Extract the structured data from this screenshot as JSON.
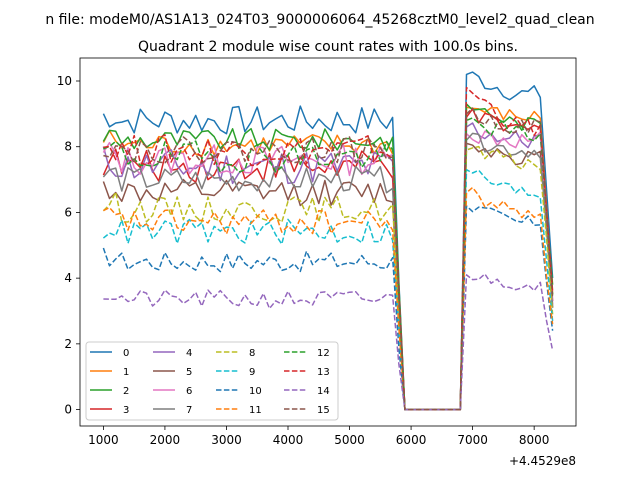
{
  "figure": {
    "suptitle": "n file: modeM0/AS1A13_024T03_9000006064_45268cztM0_level2_quad_clean",
    "title": "Quadrant 2 module wise count rates with 100.0s bins.",
    "x_offset_label": "+4.4529e8"
  },
  "chart_data": {
    "type": "line",
    "title": "Quadrant 2 module wise count rates with 100.0s bins.",
    "xlabel": "",
    "ylabel": "",
    "x_offset": "+4.4529e8",
    "xlim": [
      620,
      8680
    ],
    "ylim": [
      -0.5,
      10.7
    ],
    "xticks": [
      1000,
      2000,
      3000,
      4000,
      5000,
      6000,
      7000,
      8000
    ],
    "yticks": [
      0,
      2,
      4,
      6,
      8,
      10
    ],
    "grid": false,
    "legend": {
      "placement": "lower-left",
      "columns": 4
    },
    "x_range": {
      "start": 1000,
      "step": 100,
      "count": 74
    },
    "gap": {
      "drop_start": 5800,
      "drop_end": 5900,
      "zero_from": 5900,
      "zero_to": 6800,
      "rise_to": 6900
    },
    "series": [
      {
        "name": "0",
        "color": "#1f77b4",
        "dash": "solid",
        "level": 8.8,
        "noise": 0.28,
        "post": 9.6,
        "post_start": 10.2,
        "end": 4.0
      },
      {
        "name": "1",
        "color": "#ff7f0e",
        "dash": "solid",
        "level": 8.05,
        "noise": 0.22,
        "post": 8.9,
        "post_start": 9.2,
        "end": 3.5
      },
      {
        "name": "2",
        "color": "#2ca02c",
        "dash": "solid",
        "level": 8.2,
        "noise": 0.22,
        "post": 8.7,
        "post_start": 9.3,
        "end": 3.8
      },
      {
        "name": "3",
        "color": "#d62728",
        "dash": "solid",
        "level": 7.4,
        "noise": 0.3,
        "post": 8.5,
        "post_start": 8.9,
        "end": 3.3
      },
      {
        "name": "4",
        "color": "#9467bd",
        "dash": "solid",
        "level": 7.4,
        "noise": 0.35,
        "post": 8.2,
        "post_start": 8.6,
        "end": 3.2
      },
      {
        "name": "5",
        "color": "#8c564b",
        "dash": "solid",
        "level": 6.6,
        "noise": 0.25,
        "post": 7.7,
        "post_start": 8.1,
        "end": 3.1
      },
      {
        "name": "6",
        "color": "#e377c2",
        "dash": "solid",
        "level": 7.6,
        "noise": 0.3,
        "post": 8.2,
        "post_start": 8.4,
        "end": 3.3
      },
      {
        "name": "7",
        "color": "#7f7f7f",
        "dash": "solid",
        "level": 7.0,
        "noise": 0.25,
        "post": 7.9,
        "post_start": 8.2,
        "end": 3.1
      },
      {
        "name": "8",
        "color": "#bcbd22",
        "dash": "dashed",
        "level": 6.1,
        "noise": 0.25,
        "post": 7.5,
        "post_start": 7.9,
        "end": 2.9
      },
      {
        "name": "9",
        "color": "#17becf",
        "dash": "dashed",
        "level": 5.4,
        "noise": 0.25,
        "post": 6.6,
        "post_start": 7.3,
        "end": 2.7
      },
      {
        "name": "10",
        "color": "#1f77b4",
        "dash": "dashed",
        "level": 4.5,
        "noise": 0.2,
        "post": 5.7,
        "post_start": 6.2,
        "end": 2.4
      },
      {
        "name": "11",
        "color": "#ff7f0e",
        "dash": "dashed",
        "level": 5.7,
        "noise": 0.25,
        "post": 6.0,
        "post_start": 6.6,
        "end": 2.6
      },
      {
        "name": "12",
        "color": "#2ca02c",
        "dash": "dashed",
        "level": 7.7,
        "noise": 0.3,
        "post": 8.4,
        "post_start": 8.8,
        "end": 3.5
      },
      {
        "name": "13",
        "color": "#d62728",
        "dash": "dashed",
        "level": 7.9,
        "noise": 0.3,
        "post": 8.6,
        "post_start": 9.8,
        "end": 3.6
      },
      {
        "name": "14",
        "color": "#9467bd",
        "dash": "dashed",
        "level": 3.35,
        "noise": 0.18,
        "post": 3.8,
        "post_start": 4.1,
        "end": 1.8
      },
      {
        "name": "15",
        "color": "#8c564b",
        "dash": "dashed",
        "level": 7.9,
        "noise": 0.25,
        "post": 8.6,
        "post_start": 9.0,
        "end": 3.4
      }
    ]
  }
}
